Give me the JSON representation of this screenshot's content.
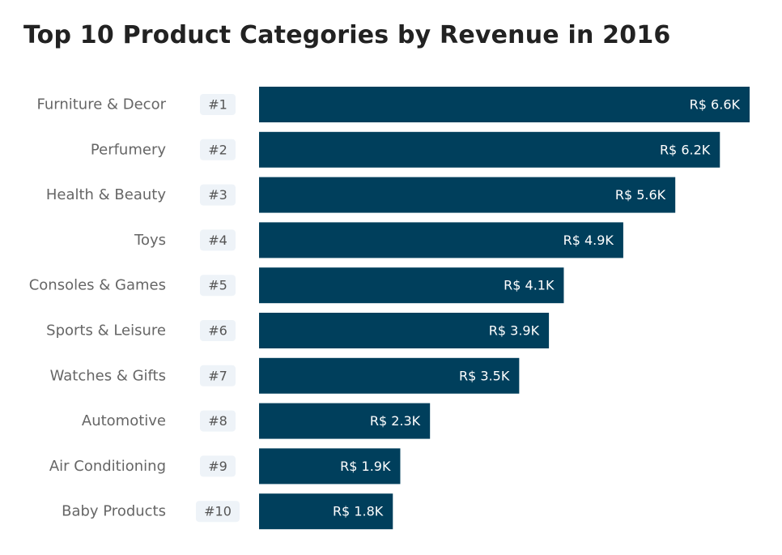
{
  "chart_data": {
    "type": "bar",
    "orientation": "horizontal",
    "title": "Top 10 Product Categories by Revenue in 2016",
    "categories": [
      "Furniture & Decor",
      "Perfumery",
      "Health & Beauty",
      "Toys",
      "Consoles & Games",
      "Sports & Leisure",
      "Watches & Gifts",
      "Automotive",
      "Air Conditioning",
      "Baby Products"
    ],
    "ranks": [
      "#1",
      "#2",
      "#3",
      "#4",
      "#5",
      "#6",
      "#7",
      "#8",
      "#9",
      "#10"
    ],
    "values": [
      6600,
      6200,
      5600,
      4900,
      4100,
      3900,
      3500,
      2300,
      1900,
      1800
    ],
    "value_labels": [
      "R$ 6.6K",
      "R$ 6.2K",
      "R$ 5.6K",
      "R$ 4.9K",
      "R$ 4.1K",
      "R$ 3.9K",
      "R$ 3.5K",
      "R$ 2.3K",
      "R$ 1.9K",
      "R$ 1.8K"
    ],
    "xlim": [
      0,
      6600
    ],
    "grid": false,
    "legend": "none",
    "colors": {
      "bar": "#003f5c",
      "value_label": "#ffffff",
      "rank_badge": "#eef3f8",
      "category_label": "#666666",
      "title": "#222222"
    }
  }
}
